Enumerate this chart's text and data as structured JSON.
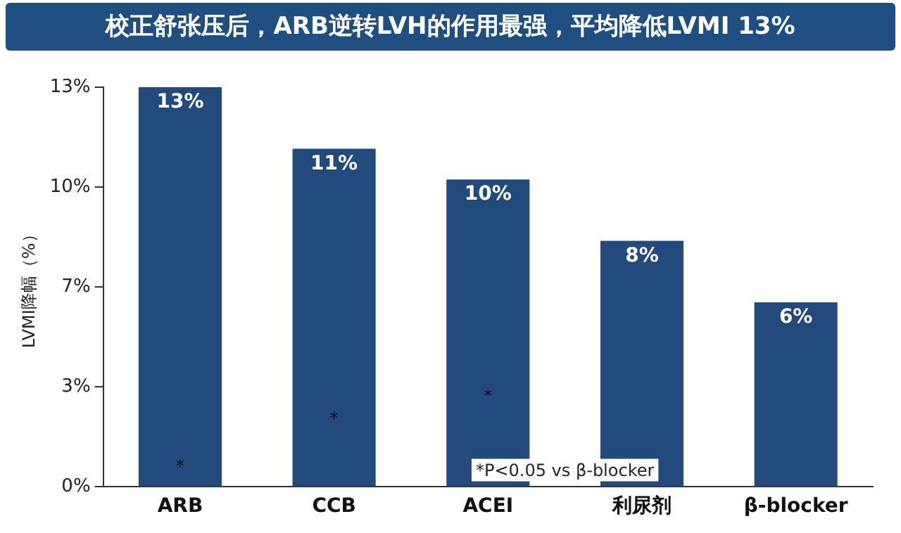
{
  "chart_data": {
    "type": "bar",
    "title": "校正舒张压后，ARB逆转LVH的作用最强，平均降低LVMI 13%",
    "ylabel": "LVMI降幅（%）",
    "categories": [
      "ARB",
      "CCB",
      "ACEI",
      "利尿剂",
      "β-blocker"
    ],
    "values": [
      13,
      11,
      10,
      8,
      6
    ],
    "color": "#234a7c",
    "value_labels": [
      "13%",
      "11%",
      "10%",
      "8%",
      "6%"
    ],
    "ylim": [
      0,
      13
    ],
    "yticks": [
      {
        "value": 0,
        "label": "0%"
      },
      {
        "value": 3.25,
        "label": "3%"
      },
      {
        "value": 6.5,
        "label": "7%"
      },
      {
        "value": 9.75,
        "label": "10%"
      },
      {
        "value": 13,
        "label": "13%"
      }
    ],
    "grid": false,
    "legend": false,
    "annotations": [
      "*",
      "*",
      "*",
      "*P<0.05 vs β-blocker"
    ]
  }
}
